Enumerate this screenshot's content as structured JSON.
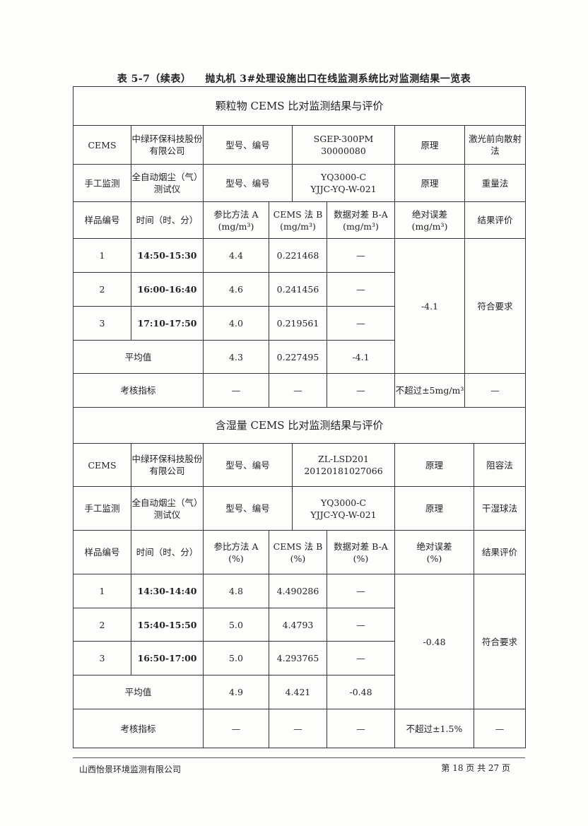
{
  "caption": {
    "number": "表 5-7（续表）",
    "title": "抛丸机 3#处理设施出口在线监测系统比对监测结果一览表"
  },
  "table1": {
    "title": "颗粒物 CEMS 比对监测结果与评价",
    "cems": {
      "label": "CEMS",
      "maker": "中绿环保科技股份有限公司",
      "model_label": "型号、编号",
      "model": [
        "SGEP-300PM",
        "30000080"
      ],
      "principle_label": "原理",
      "principle": "激光前向散射法"
    },
    "manual": {
      "label": "手工监测",
      "device": "全自动烟尘（气）测试仪",
      "model_label": "型号、编号",
      "model": [
        "YQ3000-C",
        "YJJC-YQ-W-021"
      ],
      "principle_label": "原理",
      "principle": "重量法"
    },
    "headers": [
      "样品编号",
      "时间（时、分）",
      "参比方法 A",
      "(mg/m³)",
      "CEMS 法 B",
      "(mg/m³)",
      "数据对差 B-A",
      "(mg/m³)",
      "绝对误差",
      "(mg/m³)",
      "结果评价"
    ],
    "rows": [
      [
        "1",
        "14:50-15:30",
        "4.4",
        "0.221468",
        "—"
      ],
      [
        "2",
        "16:00-16:40",
        "4.6",
        "0.241456",
        "—"
      ],
      [
        "3",
        "17:10-17:50",
        "4.0",
        "0.219561",
        "—"
      ]
    ],
    "abs_error": "-4.1",
    "result": "符合要求",
    "average": {
      "label": "平均值",
      "a": "4.3",
      "b": "0.227495",
      "diff": "-4.1"
    },
    "criteria": {
      "label": "考核指标",
      "a": "—",
      "b": "—",
      "diff": "—",
      "abs": "不超过±5mg/m³",
      "result": "—"
    }
  },
  "table2": {
    "title": "含湿量 CEMS 比对监测结果与评价",
    "cems": {
      "label": "CEMS",
      "maker": "中绿环保科技股份有限公司",
      "model_label": "型号、编号",
      "model": [
        "ZL-LSD201",
        "20120181027066"
      ],
      "principle_label": "原理",
      "principle": "阻容法"
    },
    "manual": {
      "label": "手工监测",
      "device": "全自动烟尘（气）测试仪",
      "model_label": "型号、编号",
      "model": [
        "YQ3000-C",
        "YJJC-YQ-W-021"
      ],
      "principle_label": "原理",
      "principle": "干湿球法"
    },
    "headers": [
      "样品编号",
      "时间（时、分）",
      "参比方法 A",
      "(%)",
      "CEMS 法 B",
      "(%)",
      "数据对差 B-A",
      "(%)",
      "绝对误差",
      "(%)",
      "结果评价"
    ],
    "rows": [
      [
        "1",
        "14:30-14:40",
        "4.8",
        "4.490286",
        "—"
      ],
      [
        "2",
        "15:40-15:50",
        "5.0",
        "4.4793",
        "—"
      ],
      [
        "3",
        "16:50-17:00",
        "5.0",
        "4.293765",
        "—"
      ]
    ],
    "abs_error": "-0.48",
    "result": "符合要求",
    "average": {
      "label": "平均值",
      "a": "4.9",
      "b": "4.421",
      "diff": "-0.48"
    },
    "criteria": {
      "label": "考核指标",
      "a": "—",
      "b": "—",
      "diff": "—",
      "abs": "不超过±1.5%",
      "result": "—"
    }
  },
  "footer": {
    "company": "山西怡景环境监测有限公司",
    "page": "第 18 页 共 27 页"
  }
}
